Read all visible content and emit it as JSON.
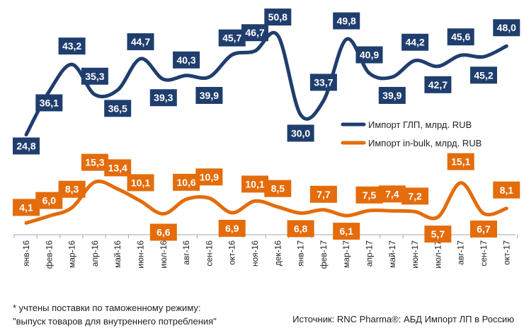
{
  "chart_data": {
    "type": "line",
    "categories": [
      "янв-16",
      "фев-16",
      "мар-16",
      "апр-16",
      "май-16",
      "июн-16",
      "июл-16",
      "авг-16",
      "сен-16",
      "окт-16",
      "ноя-16",
      "дек-16",
      "янв-17",
      "фев-17",
      "мар-17",
      "апр-17",
      "май-17",
      "июн-17",
      "июл-17",
      "авг-17",
      "сен-17",
      "окт-17"
    ],
    "series": [
      {
        "name": "Импорт ГЛП, млрд. RUB",
        "color": "#1f3e6d",
        "values": [
          24.8,
          36.1,
          43.2,
          35.3,
          36.5,
          44.7,
          39.3,
          40.3,
          39.9,
          45.7,
          46.7,
          50.8,
          30.0,
          33.7,
          49.8,
          40.9,
          39.9,
          44.2,
          42.7,
          45.6,
          45.2,
          48.0
        ]
      },
      {
        "name": "Импорт in-bulk, млрд. RUB",
        "color": "#e46c0a",
        "values": [
          4.1,
          6.0,
          8.3,
          15.3,
          13.4,
          10.1,
          6.6,
          10.6,
          10.9,
          6.9,
          10.1,
          8.5,
          6.8,
          7.7,
          6.1,
          7.5,
          7.4,
          7.2,
          5.7,
          15.1,
          6.7,
          8.1
        ]
      }
    ],
    "legend_position": "right",
    "grid": false
  },
  "footnote": {
    "line1": "* учтены поставки по таможенному режиму:",
    "line2": "\"выпуск товаров для внутреннего потребления\""
  },
  "source": "Источник: RNC Pharma®: АБД Импорт ЛП в Россию"
}
